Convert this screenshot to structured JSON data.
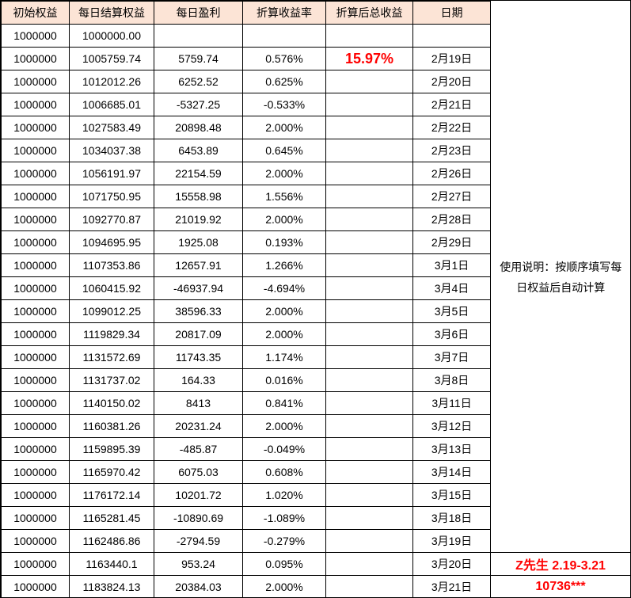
{
  "colors": {
    "header_bg": "#FCE4D6",
    "red": "#FF0000",
    "border": "#000000"
  },
  "table": {
    "headers": [
      "初始权益",
      "每日结算权益",
      "每日盈利",
      "折算收益率",
      "折算后总收益",
      "日期"
    ],
    "rows": [
      [
        "1000000",
        "1000000.00",
        "",
        "",
        "",
        ""
      ],
      [
        "1000000",
        "1005759.74",
        "5759.74",
        "0.576%",
        "15.97%",
        "2月19日"
      ],
      [
        "1000000",
        "1012012.26",
        "6252.52",
        "0.625%",
        "",
        "2月20日"
      ],
      [
        "1000000",
        "1006685.01",
        "-5327.25",
        "-0.533%",
        "",
        "2月21日"
      ],
      [
        "1000000",
        "1027583.49",
        "20898.48",
        "2.000%",
        "",
        "2月22日"
      ],
      [
        "1000000",
        "1034037.38",
        "6453.89",
        "0.645%",
        "",
        "2月23日"
      ],
      [
        "1000000",
        "1056191.97",
        "22154.59",
        "2.000%",
        "",
        "2月26日"
      ],
      [
        "1000000",
        "1071750.95",
        "15558.98",
        "1.556%",
        "",
        "2月27日"
      ],
      [
        "1000000",
        "1092770.87",
        "21019.92",
        "2.000%",
        "",
        "2月28日"
      ],
      [
        "1000000",
        "1094695.95",
        "1925.08",
        "0.193%",
        "",
        "2月29日"
      ],
      [
        "1000000",
        "1107353.86",
        "12657.91",
        "1.266%",
        "",
        "3月1日"
      ],
      [
        "1000000",
        "1060415.92",
        "-46937.94",
        "-4.694%",
        "",
        "3月4日"
      ],
      [
        "1000000",
        "1099012.25",
        "38596.33",
        "2.000%",
        "",
        "3月5日"
      ],
      [
        "1000000",
        "1119829.34",
        "20817.09",
        "2.000%",
        "",
        "3月6日"
      ],
      [
        "1000000",
        "1131572.69",
        "11743.35",
        "1.174%",
        "",
        "3月7日"
      ],
      [
        "1000000",
        "1131737.02",
        "164.33",
        "0.016%",
        "",
        "3月8日"
      ],
      [
        "1000000",
        "1140150.02",
        "8413",
        "0.841%",
        "",
        "3月11日"
      ],
      [
        "1000000",
        "1160381.26",
        "20231.24",
        "2.000%",
        "",
        "3月12日"
      ],
      [
        "1000000",
        "1159895.39",
        "-485.87",
        "-0.049%",
        "",
        "3月13日"
      ],
      [
        "1000000",
        "1165970.42",
        "6075.03",
        "0.608%",
        "",
        "3月14日"
      ],
      [
        "1000000",
        "1176172.14",
        "10201.72",
        "1.020%",
        "",
        "3月15日"
      ],
      [
        "1000000",
        "1165281.45",
        "-10890.69",
        "-1.089%",
        "",
        "3月18日"
      ],
      [
        "1000000",
        "1162486.86",
        "-2794.59",
        "-0.279%",
        "",
        "3月19日"
      ],
      [
        "1000000",
        "1163440.1",
        "953.24",
        "0.095%",
        "",
        "3月20日"
      ],
      [
        "1000000",
        "1183824.13",
        "20384.03",
        "2.000%",
        "",
        "3月21日"
      ]
    ]
  },
  "highlight": {
    "row_index": 1,
    "col_index": 4
  },
  "side_panel": {
    "note": "使用说明：按顺序填写每日权益后自动计算",
    "note_row_index": 10,
    "footer_rows": [
      "Z先生 2.19-3.21",
      "10736***"
    ],
    "footer_row_indexes": [
      23,
      24
    ]
  }
}
